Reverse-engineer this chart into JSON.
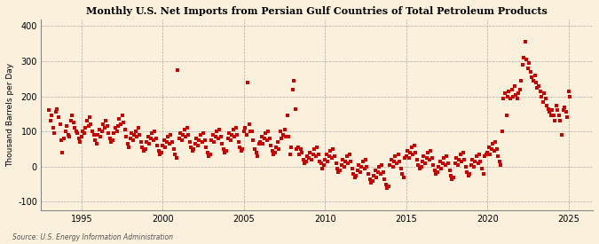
{
  "title": "Monthly U.S. Net Imports from Persian Gulf Countries of Total Petroleum Products",
  "ylabel": "Thousand Barrels per Day",
  "source": "Source: U.S. Energy Information Administration",
  "background_color": "#FAF0DC",
  "dot_color": "#CC0000",
  "xlim": [
    1992.5,
    2026.5
  ],
  "ylim": [
    -125,
    420
  ],
  "yticks": [
    -100,
    0,
    100,
    200,
    300,
    400
  ],
  "xticks": [
    1995,
    2000,
    2005,
    2010,
    2015,
    2020,
    2025
  ],
  "data_x": [
    1993.0,
    1993.08,
    1993.17,
    1993.25,
    1993.33,
    1993.42,
    1993.5,
    1993.58,
    1993.67,
    1993.75,
    1993.83,
    1993.92,
    1994.0,
    1994.08,
    1994.17,
    1994.25,
    1994.33,
    1994.42,
    1994.5,
    1994.58,
    1994.67,
    1994.75,
    1994.83,
    1994.92,
    1995.0,
    1995.08,
    1995.17,
    1995.25,
    1995.33,
    1995.42,
    1995.5,
    1995.58,
    1995.67,
    1995.75,
    1995.83,
    1995.92,
    1996.0,
    1996.08,
    1996.17,
    1996.25,
    1996.33,
    1996.42,
    1996.5,
    1996.58,
    1996.67,
    1996.75,
    1996.83,
    1996.92,
    1997.0,
    1997.08,
    1997.17,
    1997.25,
    1997.33,
    1997.42,
    1997.5,
    1997.58,
    1997.67,
    1997.75,
    1997.83,
    1997.92,
    1998.0,
    1998.08,
    1998.17,
    1998.25,
    1998.33,
    1998.42,
    1998.5,
    1998.58,
    1998.67,
    1998.75,
    1998.83,
    1998.92,
    1999.0,
    1999.08,
    1999.17,
    1999.25,
    1999.33,
    1999.42,
    1999.5,
    1999.58,
    1999.67,
    1999.75,
    1999.83,
    1999.92,
    2000.0,
    2000.08,
    2000.17,
    2000.25,
    2000.33,
    2000.42,
    2000.5,
    2000.58,
    2000.67,
    2000.75,
    2000.83,
    2000.92,
    2001.0,
    2001.08,
    2001.17,
    2001.25,
    2001.33,
    2001.42,
    2001.5,
    2001.58,
    2001.67,
    2001.75,
    2001.83,
    2001.92,
    2002.0,
    2002.08,
    2002.17,
    2002.25,
    2002.33,
    2002.42,
    2002.5,
    2002.58,
    2002.67,
    2002.75,
    2002.83,
    2002.92,
    2003.0,
    2003.08,
    2003.17,
    2003.25,
    2003.33,
    2003.42,
    2003.5,
    2003.58,
    2003.67,
    2003.75,
    2003.83,
    2003.92,
    2004.0,
    2004.08,
    2004.17,
    2004.25,
    2004.33,
    2004.42,
    2004.5,
    2004.58,
    2004.67,
    2004.75,
    2004.83,
    2004.92,
    2005.0,
    2005.08,
    2005.17,
    2005.25,
    2005.33,
    2005.42,
    2005.5,
    2005.58,
    2005.67,
    2005.75,
    2005.83,
    2005.92,
    2006.0,
    2006.08,
    2006.17,
    2006.25,
    2006.33,
    2006.42,
    2006.5,
    2006.58,
    2006.67,
    2006.75,
    2006.83,
    2006.92,
    2007.0,
    2007.08,
    2007.17,
    2007.25,
    2007.33,
    2007.42,
    2007.5,
    2007.58,
    2007.67,
    2007.75,
    2007.83,
    2007.92,
    2008.0,
    2008.08,
    2008.17,
    2008.25,
    2008.33,
    2008.42,
    2008.5,
    2008.58,
    2008.67,
    2008.75,
    2008.83,
    2008.92,
    2009.0,
    2009.08,
    2009.17,
    2009.25,
    2009.33,
    2009.42,
    2009.5,
    2009.58,
    2009.67,
    2009.75,
    2009.83,
    2009.92,
    2010.0,
    2010.08,
    2010.17,
    2010.25,
    2010.33,
    2010.42,
    2010.5,
    2010.58,
    2010.67,
    2010.75,
    2010.83,
    2010.92,
    2011.0,
    2011.08,
    2011.17,
    2011.25,
    2011.33,
    2011.42,
    2011.5,
    2011.58,
    2011.67,
    2011.75,
    2011.83,
    2011.92,
    2012.0,
    2012.08,
    2012.17,
    2012.25,
    2012.33,
    2012.42,
    2012.5,
    2012.58,
    2012.67,
    2012.75,
    2012.83,
    2012.92,
    2013.0,
    2013.08,
    2013.17,
    2013.25,
    2013.33,
    2013.42,
    2013.5,
    2013.58,
    2013.67,
    2013.75,
    2013.83,
    2013.92,
    2014.0,
    2014.08,
    2014.17,
    2014.25,
    2014.33,
    2014.42,
    2014.5,
    2014.58,
    2014.67,
    2014.75,
    2014.83,
    2014.92,
    2015.0,
    2015.08,
    2015.17,
    2015.25,
    2015.33,
    2015.42,
    2015.5,
    2015.58,
    2015.67,
    2015.75,
    2015.83,
    2015.92,
    2016.0,
    2016.08,
    2016.17,
    2016.25,
    2016.33,
    2016.42,
    2016.5,
    2016.58,
    2016.67,
    2016.75,
    2016.83,
    2016.92,
    2017.0,
    2017.08,
    2017.17,
    2017.25,
    2017.33,
    2017.42,
    2017.5,
    2017.58,
    2017.67,
    2017.75,
    2017.83,
    2017.92,
    2018.0,
    2018.08,
    2018.17,
    2018.25,
    2018.33,
    2018.42,
    2018.5,
    2018.58,
    2018.67,
    2018.75,
    2018.83,
    2018.92,
    2019.0,
    2019.08,
    2019.17,
    2019.25,
    2019.33,
    2019.42,
    2019.5,
    2019.58,
    2019.67,
    2019.75,
    2019.83,
    2019.92,
    2020.0,
    2020.08,
    2020.17,
    2020.25,
    2020.33,
    2020.42,
    2020.5,
    2020.58,
    2020.67,
    2020.75,
    2020.83,
    2020.92,
    2021.0,
    2021.08,
    2021.17,
    2021.25,
    2021.33,
    2021.42,
    2021.5,
    2021.58,
    2021.67,
    2021.75,
    2021.83,
    2021.92,
    2022.0,
    2022.08,
    2022.17,
    2022.25,
    2022.33,
    2022.42,
    2022.5,
    2022.58,
    2022.67,
    2022.75,
    2022.83,
    2022.92,
    2023.0,
    2023.08,
    2023.17,
    2023.25,
    2023.33,
    2023.42,
    2023.5,
    2023.58,
    2023.67,
    2023.75,
    2023.83,
    2023.92,
    2024.0,
    2024.08,
    2024.17,
    2024.25,
    2024.33,
    2024.42,
    2024.5,
    2024.58,
    2024.67,
    2024.75,
    2024.83,
    2024.92,
    2025.0,
    2025.08
  ],
  "data_y": [
    160,
    130,
    145,
    110,
    95,
    155,
    165,
    140,
    120,
    75,
    40,
    80,
    100,
    115,
    90,
    85,
    130,
    145,
    125,
    110,
    100,
    95,
    80,
    70,
    85,
    100,
    95,
    110,
    130,
    115,
    140,
    120,
    100,
    90,
    75,
    65,
    90,
    105,
    85,
    100,
    120,
    110,
    130,
    115,
    95,
    80,
    70,
    75,
    95,
    110,
    100,
    115,
    135,
    120,
    145,
    125,
    105,
    85,
    65,
    55,
    80,
    95,
    75,
    90,
    100,
    85,
    110,
    90,
    70,
    55,
    45,
    50,
    70,
    85,
    65,
    80,
    95,
    75,
    100,
    80,
    60,
    45,
    35,
    40,
    60,
    75,
    55,
    70,
    85,
    65,
    90,
    70,
    50,
    35,
    25,
    275,
    80,
    95,
    75,
    90,
    105,
    85,
    110,
    90,
    70,
    55,
    45,
    50,
    65,
    80,
    60,
    75,
    90,
    70,
    95,
    75,
    55,
    40,
    30,
    35,
    75,
    90,
    70,
    85,
    100,
    80,
    105,
    85,
    65,
    50,
    40,
    45,
    80,
    95,
    75,
    90,
    105,
    85,
    110,
    90,
    70,
    55,
    45,
    50,
    100,
    110,
    90,
    240,
    120,
    100,
    100,
    75,
    50,
    40,
    30,
    65,
    70,
    85,
    65,
    80,
    95,
    75,
    100,
    80,
    60,
    45,
    35,
    40,
    55,
    70,
    50,
    100,
    80,
    90,
    105,
    85,
    145,
    85,
    35,
    55,
    220,
    245,
    165,
    50,
    55,
    35,
    50,
    40,
    20,
    10,
    15,
    30,
    25,
    40,
    20,
    35,
    50,
    30,
    55,
    35,
    15,
    10,
    -5,
    5,
    20,
    35,
    15,
    30,
    45,
    25,
    50,
    30,
    10,
    -5,
    -15,
    -10,
    5,
    20,
    0,
    15,
    30,
    10,
    35,
    15,
    -5,
    -20,
    -30,
    -25,
    -10,
    5,
    -15,
    0,
    15,
    -5,
    20,
    0,
    -20,
    -35,
    -45,
    -40,
    -25,
    -10,
    -30,
    -15,
    0,
    -20,
    5,
    -15,
    -35,
    -50,
    -60,
    -55,
    5,
    20,
    0,
    15,
    30,
    10,
    35,
    15,
    -5,
    -20,
    -30,
    25,
    30,
    45,
    25,
    40,
    55,
    35,
    60,
    40,
    20,
    5,
    -5,
    0,
    15,
    30,
    10,
    25,
    40,
    20,
    45,
    25,
    5,
    -10,
    -20,
    -15,
    0,
    15,
    -5,
    10,
    25,
    5,
    30,
    10,
    -10,
    -25,
    -35,
    -30,
    10,
    25,
    5,
    20,
    35,
    15,
    40,
    20,
    0,
    -15,
    -25,
    -20,
    5,
    20,
    0,
    15,
    30,
    10,
    35,
    15,
    -5,
    -20,
    30,
    35,
    40,
    55,
    35,
    50,
    65,
    45,
    70,
    50,
    30,
    15,
    5,
    100,
    195,
    210,
    145,
    200,
    215,
    195,
    220,
    200,
    230,
    205,
    195,
    210,
    220,
    245,
    290,
    310,
    355,
    305,
    280,
    295,
    270,
    255,
    245,
    260,
    240,
    225,
    230,
    215,
    200,
    185,
    210,
    195,
    175,
    165,
    155,
    145,
    160,
    145,
    130,
    175,
    160,
    145,
    130,
    90,
    160,
    170,
    155,
    140,
    215,
    200
  ]
}
